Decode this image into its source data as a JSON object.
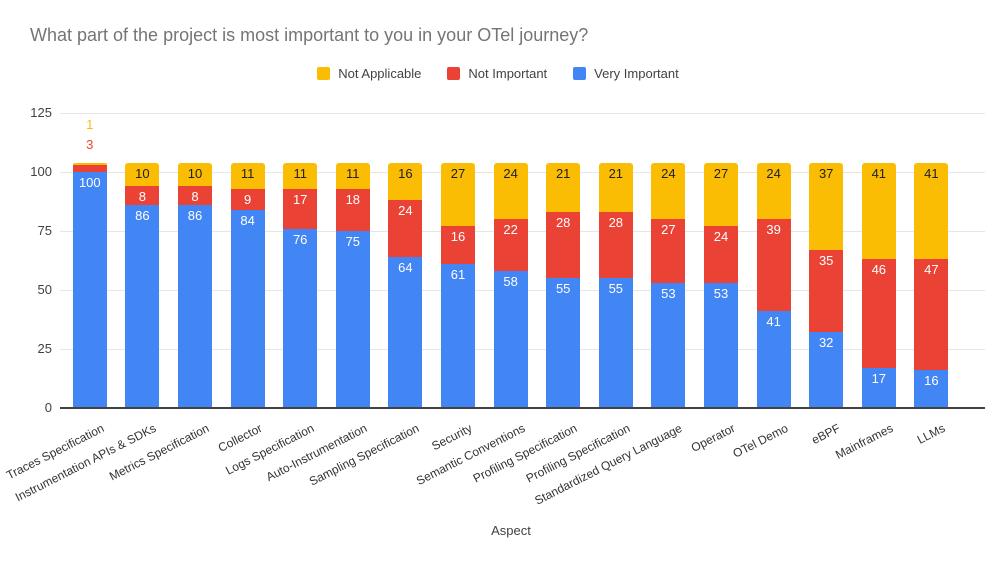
{
  "title": "What part of the project is most important to you in your OTel journey?",
  "legend": [
    {
      "label": "Not Applicable",
      "color": "#FBBC04"
    },
    {
      "label": "Not Important",
      "color": "#EA4335"
    },
    {
      "label": "Very Important",
      "color": "#4285F4"
    }
  ],
  "colors": {
    "very_important": "#4285F4",
    "not_important": "#EA4335",
    "not_applicable": "#FBBC04",
    "title_text": "#757575",
    "gridline": "#e6e6e6",
    "axis_line": "#424242",
    "label_on_dark": "#ffffff",
    "label_on_yellow": "#202124"
  },
  "chart_data": {
    "type": "bar",
    "stacked": true,
    "title": "What part of the project is most important to you in your OTel journey?",
    "xlabel": "Aspect",
    "ylabel": "",
    "ylim": [
      0,
      125
    ],
    "yticks": [
      0,
      25,
      50,
      75,
      100,
      125
    ],
    "grid": true,
    "legend_position": "top",
    "categories": [
      "Traces Specification",
      "Instrumentation APIs & SDKs",
      "Metrics Specification",
      "Collector",
      "Logs Specification",
      "Auto-Instrumentation",
      "Sampling Specification",
      "Security",
      "Semantic Conventions",
      "Profiling Specification",
      "Profiling Specification",
      "Standardized Query Language",
      "Operator",
      "OTel Demo",
      "eBPF",
      "Mainframes",
      "LLMs"
    ],
    "series": [
      {
        "name": "Very Important",
        "color": "#4285F4",
        "values": [
          100,
          86,
          86,
          84,
          76,
          75,
          64,
          61,
          58,
          55,
          55,
          53,
          53,
          41,
          32,
          17,
          16
        ]
      },
      {
        "name": "Not Important",
        "color": "#EA4335",
        "values": [
          3,
          8,
          8,
          9,
          17,
          18,
          24,
          16,
          22,
          28,
          28,
          27,
          24,
          39,
          35,
          46,
          47
        ]
      },
      {
        "name": "Not Applicable",
        "color": "#FBBC04",
        "values": [
          1,
          10,
          10,
          11,
          11,
          11,
          16,
          27,
          24,
          21,
          21,
          24,
          27,
          24,
          37,
          41,
          41
        ]
      }
    ]
  }
}
